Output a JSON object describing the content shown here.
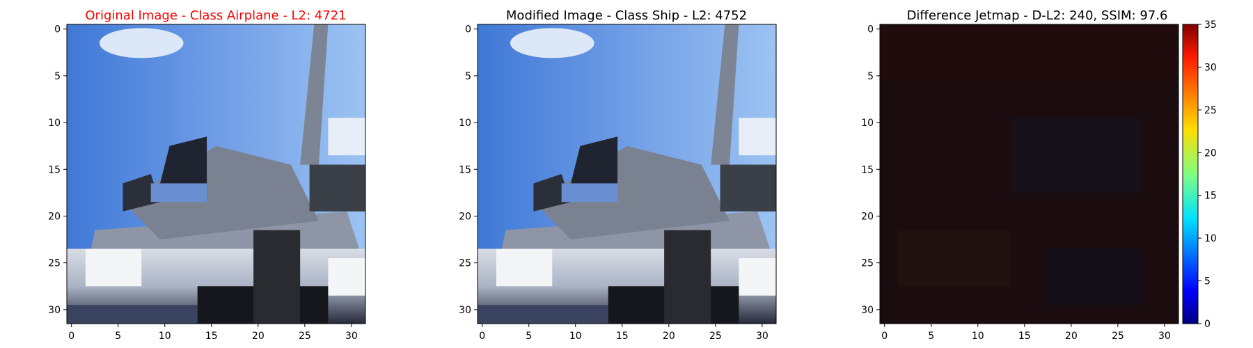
{
  "chart_data": [
    {
      "type": "heatmap",
      "title": "Original Image - Class Airplane - L2: 4721",
      "title_color": "#ff0000",
      "content": "rgb-image",
      "xlim": [
        -0.5,
        31.5
      ],
      "ylim": [
        31.5,
        -0.5
      ],
      "xticks": [
        0,
        5,
        10,
        15,
        20,
        25,
        30
      ],
      "yticks": [
        0,
        5,
        10,
        15,
        20,
        25,
        30
      ]
    },
    {
      "type": "heatmap",
      "title": "Modified Image - Class Ship - L2: 4752",
      "title_color": "#000000",
      "content": "rgb-image",
      "xlim": [
        -0.5,
        31.5
      ],
      "ylim": [
        31.5,
        -0.5
      ],
      "xticks": [
        0,
        5,
        10,
        15,
        20,
        25,
        30
      ],
      "yticks": [
        0,
        5,
        10,
        15,
        20,
        25,
        30
      ]
    },
    {
      "type": "heatmap",
      "title": "Difference Jetmap - D-L2: 240, SSIM: 97.6",
      "title_color": "#000000",
      "content": "difference",
      "colormap": "jet",
      "xlim": [
        -0.5,
        31.5
      ],
      "ylim": [
        31.5,
        -0.5
      ],
      "xticks": [
        0,
        5,
        10,
        15,
        20,
        25,
        30
      ],
      "yticks": [
        0,
        5,
        10,
        15,
        20,
        25,
        30
      ],
      "colorbar": {
        "range": [
          0,
          35
        ],
        "ticks": [
          0,
          5,
          10,
          15,
          20,
          25,
          30,
          35
        ]
      }
    }
  ]
}
